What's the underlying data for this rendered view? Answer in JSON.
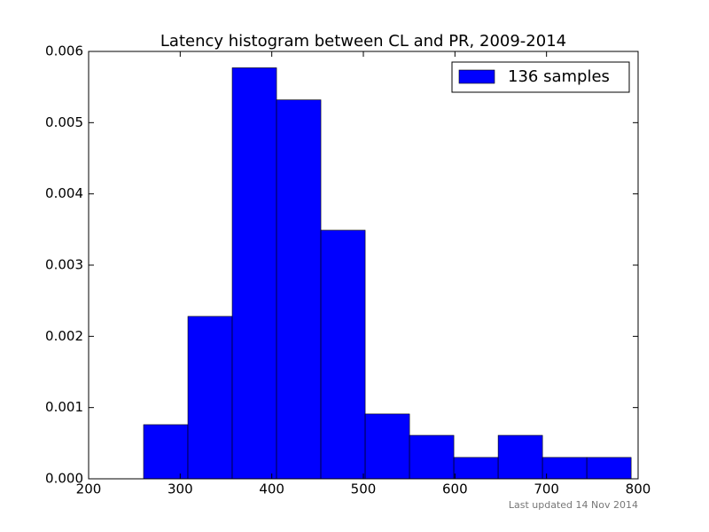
{
  "chart_data": {
    "type": "histogram",
    "title": "Latency histogram between CL and PR, 2009-2014",
    "bins": [
      260,
      308.4,
      356.8,
      405.2,
      453.6,
      502,
      550.4,
      598.8,
      647.2,
      695.6,
      744,
      792.4
    ],
    "series": [
      {
        "name": "136 samples",
        "color": "#0000ff",
        "values": [
          0.00076,
          0.00228,
          0.00577,
          0.00532,
          0.00349,
          0.00091,
          0.00061,
          0.0003,
          0.00061,
          0.0003,
          0.0003
        ]
      }
    ],
    "xlim": [
      200,
      800
    ],
    "xticks": [
      200,
      300,
      400,
      500,
      600,
      700,
      800
    ],
    "ylim": [
      0,
      0.006
    ],
    "yticks": [
      {
        "value": 0,
        "label": "0.000"
      },
      {
        "value": 0.001,
        "label": "0.001"
      },
      {
        "value": 0.002,
        "label": "0.002"
      },
      {
        "value": 0.003,
        "label": "0.003"
      },
      {
        "value": 0.004,
        "label": "0.004"
      },
      {
        "value": 0.005,
        "label": "0.005"
      },
      {
        "value": 0.006,
        "label": "0.006"
      }
    ],
    "legend": "upper right",
    "annotation": "Last updated 14 Nov 2014"
  }
}
